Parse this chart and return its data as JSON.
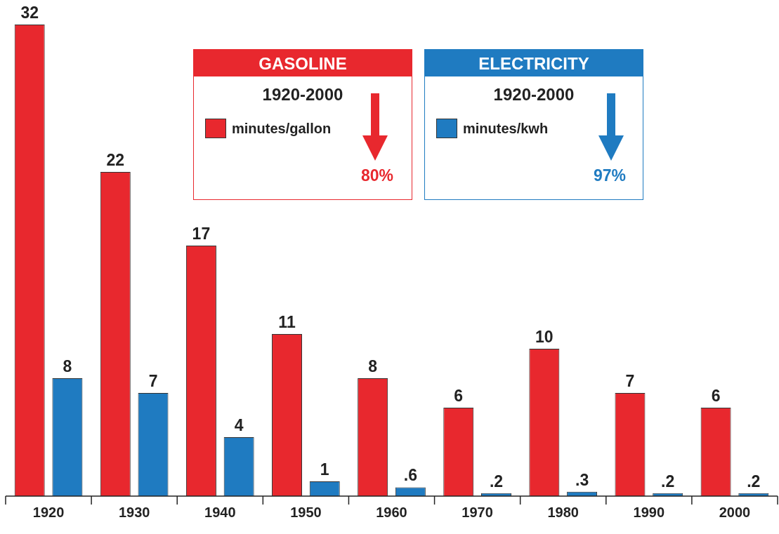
{
  "chart_data": {
    "type": "bar",
    "categories": [
      "1920",
      "1930",
      "1940",
      "1950",
      "1960",
      "1970",
      "1980",
      "1990",
      "2000"
    ],
    "series": [
      {
        "name": "minutes/gallon",
        "color": "#e8282e",
        "values": [
          32,
          22,
          17,
          11,
          8,
          6,
          10,
          7,
          6
        ],
        "value_labels": [
          "32",
          "22",
          "17",
          "11",
          "8",
          "6",
          "10",
          "7",
          "6"
        ]
      },
      {
        "name": "minutes/kwh",
        "color": "#1f7bc1",
        "values": [
          8,
          7,
          4,
          1,
          0.6,
          0.2,
          0.3,
          0.2,
          0.2
        ],
        "value_labels": [
          "8",
          "7",
          "4",
          "1",
          ".6",
          ".2",
          ".3",
          ".2",
          ".2"
        ]
      }
    ],
    "annotations": [
      "GASOLINE",
      "1920-2000",
      "80%",
      "ELECTRICITY",
      "1920-2000",
      "97%"
    ],
    "legend": "top",
    "grid": false
  }
}
